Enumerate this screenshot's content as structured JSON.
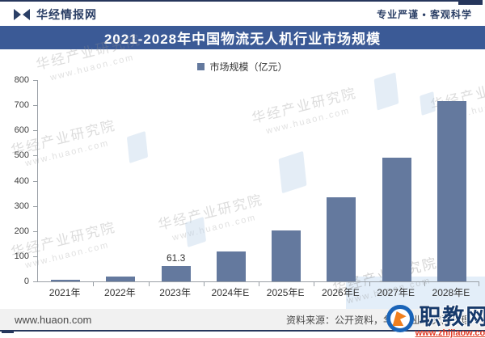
{
  "header": {
    "brand": "华经情报网",
    "slogan": "专业严谨 • 客观科学"
  },
  "title_bar": {
    "text": "2021-2028年中国物流无人机行业市场规模"
  },
  "legend": {
    "label": "市场规模（亿元）"
  },
  "chart_data": {
    "type": "bar",
    "title": "2021-2028年中国物流无人机行业市场规模",
    "series_name": "市场规模（亿元）",
    "categories": [
      "2021年",
      "2022年",
      "2023年",
      "2024年E",
      "2025年E",
      "2026年E",
      "2027年E",
      "2028年E"
    ],
    "values": [
      7,
      20,
      61.3,
      118,
      203,
      335,
      492,
      715
    ],
    "point_labels": [
      "",
      "",
      "61.3",
      "",
      "",
      "",
      "",
      ""
    ],
    "ylim": [
      0,
      800
    ],
    "yticks": [
      0,
      100,
      200,
      300,
      400,
      500,
      600,
      700,
      800
    ],
    "ylabel": "",
    "xlabel": "",
    "grid": false,
    "legend_position": "top",
    "bar_color": "#64799e"
  },
  "watermarks": {
    "line1": "华经产业研究院",
    "line2": "www.huaon.com"
  },
  "footer": {
    "website": "www.huaon.com",
    "source": "资料来源：公开资料，华经产业研究院整理"
  },
  "overlay_logo": {
    "name": "职教网",
    "url": "www.zhijiaow.com"
  },
  "colors": {
    "title_bar_bg": "#3b5a96",
    "bar": "#64799e",
    "edge_navy": "#26365c",
    "footer_bg": "#f1f1f1"
  }
}
